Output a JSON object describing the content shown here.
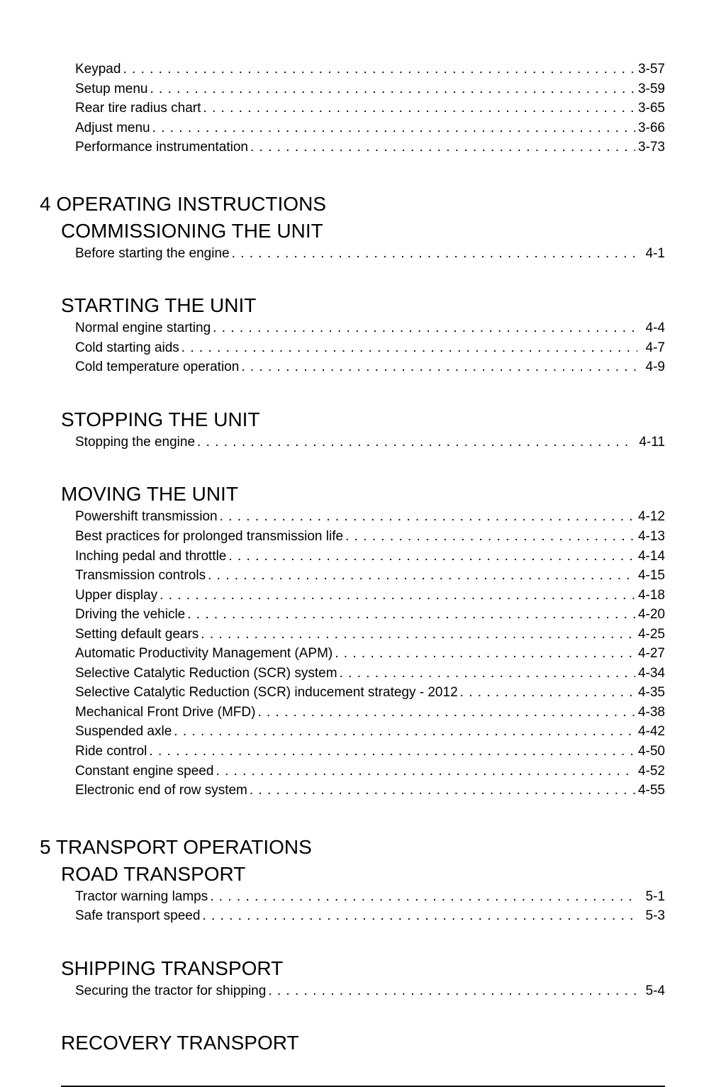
{
  "intro_items": [
    {
      "label": "Keypad",
      "page": "3-57"
    },
    {
      "label": "Setup menu",
      "page": "3-59"
    },
    {
      "label": "Rear tire radius chart",
      "page": "3-65"
    },
    {
      "label": "Adjust menu",
      "page": "3-66"
    },
    {
      "label": "Performance instrumentation",
      "page": "3-73"
    }
  ],
  "chapters": [
    {
      "title": "4 OPERATING INSTRUCTIONS",
      "sections": [
        {
          "title": "COMMISSIONING THE UNIT",
          "items": [
            {
              "label": "Before starting the engine",
              "page": "4-1",
              "pad": true
            }
          ]
        },
        {
          "title": "STARTING THE UNIT",
          "items": [
            {
              "label": "Normal engine starting",
              "page": "4-4",
              "pad": true
            },
            {
              "label": "Cold starting aids",
              "page": "4-7",
              "pad": true
            },
            {
              "label": "Cold temperature operation",
              "page": "4-9",
              "pad": true
            }
          ]
        },
        {
          "title": "STOPPING THE UNIT",
          "items": [
            {
              "label": "Stopping the engine",
              "page": "4-11",
              "pad": true
            }
          ]
        },
        {
          "title": "MOVING THE UNIT",
          "items": [
            {
              "label": "Powershift transmission",
              "page": "4-12"
            },
            {
              "label": "Best practices for prolonged transmission life",
              "page": "4-13"
            },
            {
              "label": "Inching pedal and throttle",
              "page": "4-14"
            },
            {
              "label": "Transmission controls",
              "page": "4-15"
            },
            {
              "label": "Upper display",
              "page": "4-18"
            },
            {
              "label": "Driving the vehicle",
              "page": "4-20"
            },
            {
              "label": "Setting default gears",
              "page": "4-25"
            },
            {
              "label": "Automatic Productivity Management (APM)",
              "page": "4-27"
            },
            {
              "label": "Selective Catalytic Reduction (SCR) system",
              "page": "4-34"
            },
            {
              "label": "Selective Catalytic Reduction (SCR) inducement strategy - 2012",
              "page": "4-35"
            },
            {
              "label": "Mechanical Front Drive (MFD)",
              "page": "4-38"
            },
            {
              "label": "Suspended axle",
              "page": "4-42"
            },
            {
              "label": "Ride control",
              "page": "4-50"
            },
            {
              "label": "Constant engine speed",
              "page": "4-52"
            },
            {
              "label": "Electronic end of row system",
              "page": "4-55"
            }
          ]
        }
      ]
    },
    {
      "title": "5 TRANSPORT OPERATIONS",
      "sections": [
        {
          "title": "ROAD TRANSPORT",
          "items": [
            {
              "label": "Tractor warning lamps",
              "page": "5-1",
              "pad": true
            },
            {
              "label": "Safe transport speed",
              "page": "5-3",
              "pad": true
            }
          ]
        },
        {
          "title": "SHIPPING TRANSPORT",
          "items": [
            {
              "label": "Securing the tractor for shipping",
              "page": "5-4",
              "pad": true
            }
          ]
        },
        {
          "title": "RECOVERY TRANSPORT",
          "items": []
        }
      ]
    }
  ]
}
